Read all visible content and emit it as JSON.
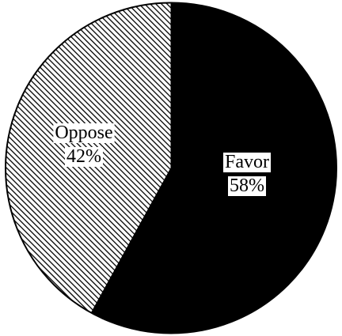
{
  "chart_data": {
    "type": "pie",
    "slices": [
      {
        "label": "Favor",
        "value": 58,
        "value_label": "58%",
        "color": "#000000",
        "fill": "solid"
      },
      {
        "label": "Oppose",
        "value": 42,
        "value_label": "42%",
        "color": "#000000",
        "fill": "diagonal-hatch"
      }
    ],
    "legend": "none"
  }
}
